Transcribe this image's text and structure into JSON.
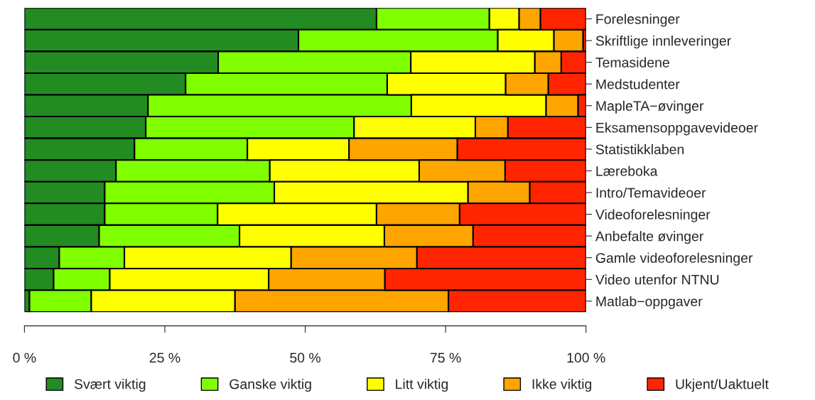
{
  "chart_data": {
    "type": "bar",
    "orientation": "horizontal",
    "stacked": true,
    "categories": [
      "Forelesninger",
      "Skriftlige innleveringer",
      "Temasidene",
      "Medstudenter",
      "MapleTA−øvinger",
      "Eksamensoppgavevideoer",
      "Statistikklaben",
      "Læreboka",
      "Intro/Temavideoer",
      "Videoforelesninger",
      "Anbefalte øvinger",
      "Gamle videoforelesninger",
      "Video utenfor NTNU",
      "Matlab−oppgaver"
    ],
    "series": [
      {
        "name": "Svært viktig",
        "color": "#228b22",
        "values": [
          62.7,
          48.8,
          34.5,
          28.7,
          22.0,
          21.6,
          19.6,
          16.3,
          14.3,
          14.3,
          13.3,
          6.2,
          5.2,
          0.9
        ]
      },
      {
        "name": "Ganske viktig",
        "color": "#7fff00",
        "values": [
          20.1,
          35.5,
          34.3,
          35.9,
          46.9,
          37.1,
          20.1,
          27.4,
          30.2,
          20.1,
          25.0,
          11.6,
          10.0,
          11.0
        ]
      },
      {
        "name": "Litt viktig",
        "color": "#ffff00",
        "values": [
          5.3,
          10.0,
          22.1,
          21.1,
          24.0,
          21.6,
          18.1,
          26.6,
          34.5,
          28.3,
          25.8,
          29.7,
          28.3,
          25.6
        ]
      },
      {
        "name": "Ikke viktig",
        "color": "#ffa500",
        "values": [
          3.8,
          5.2,
          4.7,
          7.6,
          5.7,
          5.8,
          19.3,
          15.3,
          11.0,
          14.8,
          15.8,
          22.4,
          20.7,
          38.0
        ]
      },
      {
        "name": "Ukjent/Uaktuelt",
        "color": "#ff2500",
        "values": [
          8.1,
          0.5,
          4.4,
          6.7,
          1.4,
          13.9,
          22.9,
          14.4,
          10.0,
          22.5,
          20.1,
          30.1,
          35.8,
          24.5
        ]
      }
    ],
    "xlim": [
      0,
      100
    ],
    "xticks": [
      {
        "value": 0,
        "label": "0 %"
      },
      {
        "value": 25,
        "label": "25 %"
      },
      {
        "value": 50,
        "label": "50 %"
      },
      {
        "value": 75,
        "label": "75 %"
      },
      {
        "value": 100,
        "label": "100 %"
      }
    ],
    "legend": "bottom",
    "grid": false
  }
}
